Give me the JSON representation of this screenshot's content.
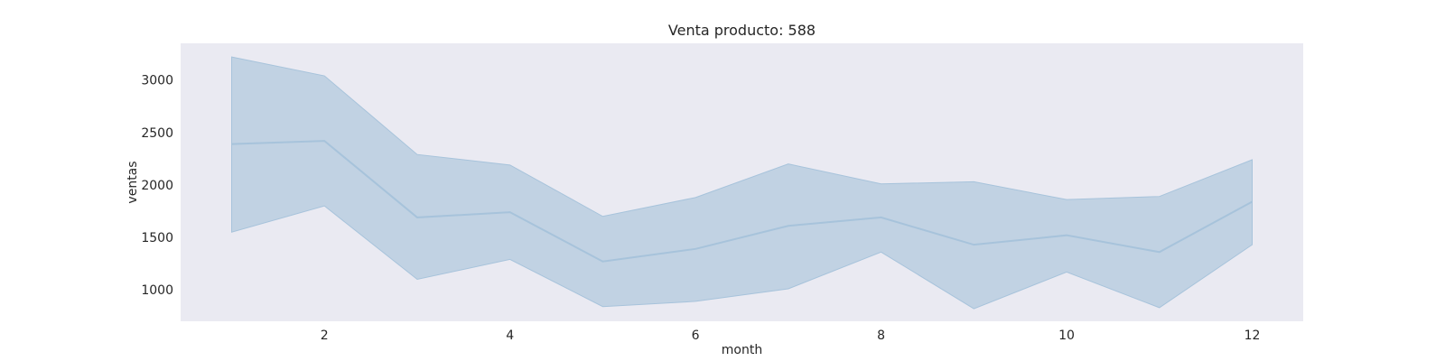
{
  "chart_data": {
    "type": "line",
    "title": "Venta producto: 588",
    "xlabel": "month",
    "ylabel": "ventas",
    "xlim": [
      0.45,
      12.55
    ],
    "ylim": [
      700,
      3350
    ],
    "xticks": [
      2,
      4,
      6,
      8,
      10,
      12
    ],
    "yticks": [
      1000,
      1500,
      2000,
      2500,
      3000
    ],
    "grid": false,
    "colors": {
      "plot_background": "#EAEAF2",
      "line": "#A7C3DB",
      "band": "#C1D2E3"
    },
    "series": [
      {
        "x": [
          1,
          2,
          3,
          4,
          5,
          6,
          7,
          8,
          9,
          10,
          11,
          12
        ],
        "y": [
          2390,
          2420,
          1690,
          1740,
          1270,
          1390,
          1610,
          1690,
          1430,
          1520,
          1360,
          1840
        ],
        "lower": [
          1550,
          1800,
          1100,
          1290,
          840,
          890,
          1010,
          1360,
          820,
          1170,
          830,
          1430
        ],
        "upper": [
          3220,
          3040,
          2290,
          2190,
          1700,
          1880,
          2200,
          2010,
          2030,
          1860,
          1890,
          2240
        ]
      }
    ]
  }
}
